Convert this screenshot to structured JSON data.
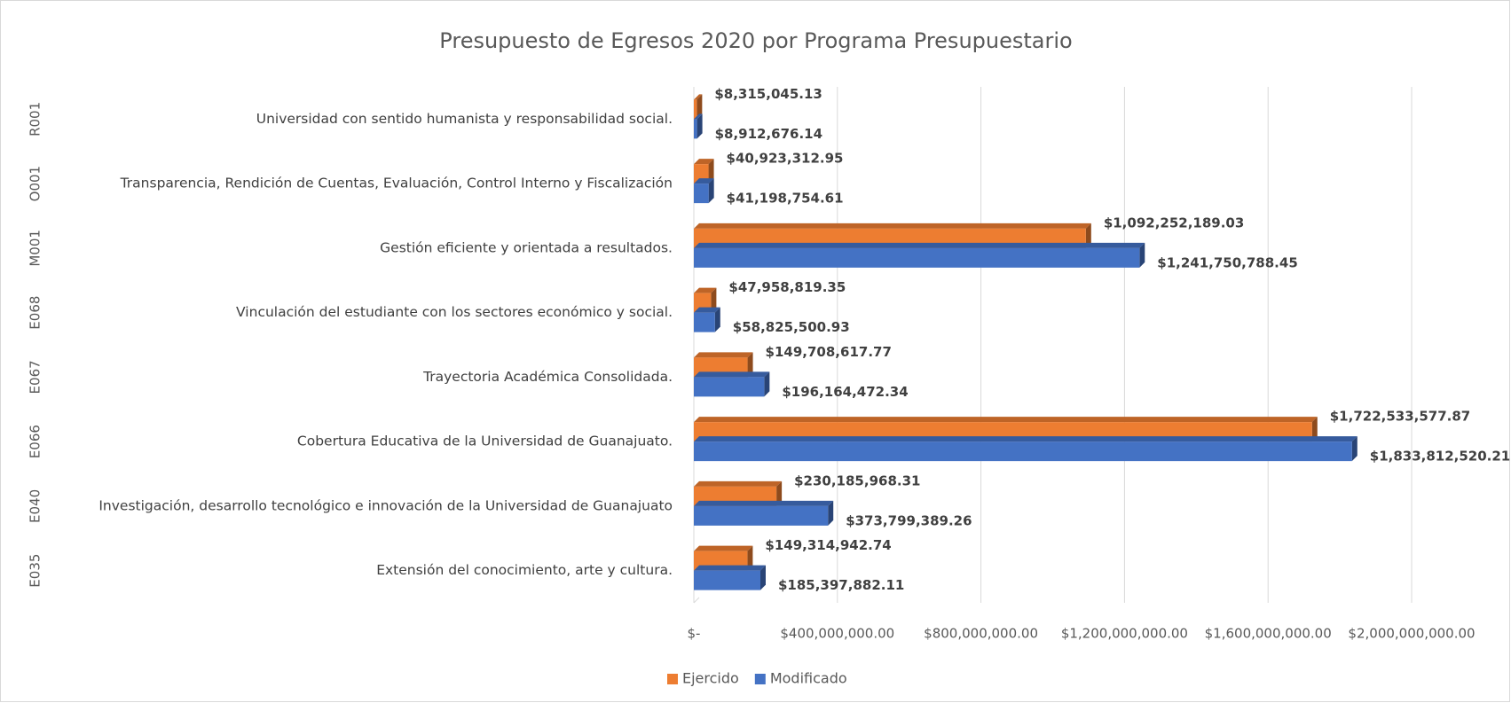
{
  "chart_data": {
    "type": "bar",
    "orientation": "horizontal",
    "title": "Presupuesto de Egresos 2020 por Programa Presupuestario",
    "category_codes": [
      "R001",
      "O001",
      "M001",
      "E068",
      "E067",
      "E066",
      "E040",
      "E035"
    ],
    "categories": [
      "Universidad con sentido humanista y responsabilidad social.",
      "Transparencia, Rendición de Cuentas, Evaluación, Control Interno y Fiscalización",
      "Gestión eficiente y orientada a resultados.",
      "Vinculación del estudiante con los sectores económico y social.",
      "Trayectoria Académica Consolidada.",
      "Cobertura Educativa de la Universidad de Guanajuato.",
      "Investigación, desarrollo tecnológico e innovación de la Universidad de Guanajuato",
      "Extensión del conocimiento, arte y cultura."
    ],
    "series": [
      {
        "name": "Ejercido",
        "color": "#ed7d31",
        "values": [
          8315045.13,
          40923312.95,
          1092252189.03,
          47958819.35,
          149708617.77,
          1722533577.87,
          230185968.31,
          149314942.74
        ],
        "value_labels": [
          "$8,315,045.13",
          "$40,923,312.95",
          "$1,092,252,189.03",
          "$47,958,819.35",
          "$149,708,617.77",
          "$1,722,533,577.87",
          "$230,185,968.31",
          "$149,314,942.74"
        ]
      },
      {
        "name": "Modificado",
        "color": "#4472c4",
        "values": [
          8912676.14,
          41198754.61,
          1241750788.45,
          58825500.93,
          196164472.34,
          1833812520.21,
          373799389.26,
          185397882.11
        ],
        "value_labels": [
          "$8,912,676.14",
          "$41,198,754.61",
          "$1,241,750,788.45",
          "$58,825,500.93",
          "$196,164,472.34",
          "$1,833,812,520.21",
          "$373,799,389.26",
          "$185,397,882.11"
        ]
      }
    ],
    "xlim": [
      0,
      2000000000
    ],
    "xticks": [
      {
        "value": 0,
        "label": "$-"
      },
      {
        "value": 400000000,
        "label": "$400,000,000.00"
      },
      {
        "value": 800000000,
        "label": "$800,000,000.00"
      },
      {
        "value": 1200000000,
        "label": "$1,200,000,000.00"
      },
      {
        "value": 1600000000,
        "label": "$1,600,000,000.00"
      },
      {
        "value": 2000000000,
        "label": "$2,000,000,000.00"
      }
    ],
    "grid": true,
    "legend": "bottom"
  }
}
